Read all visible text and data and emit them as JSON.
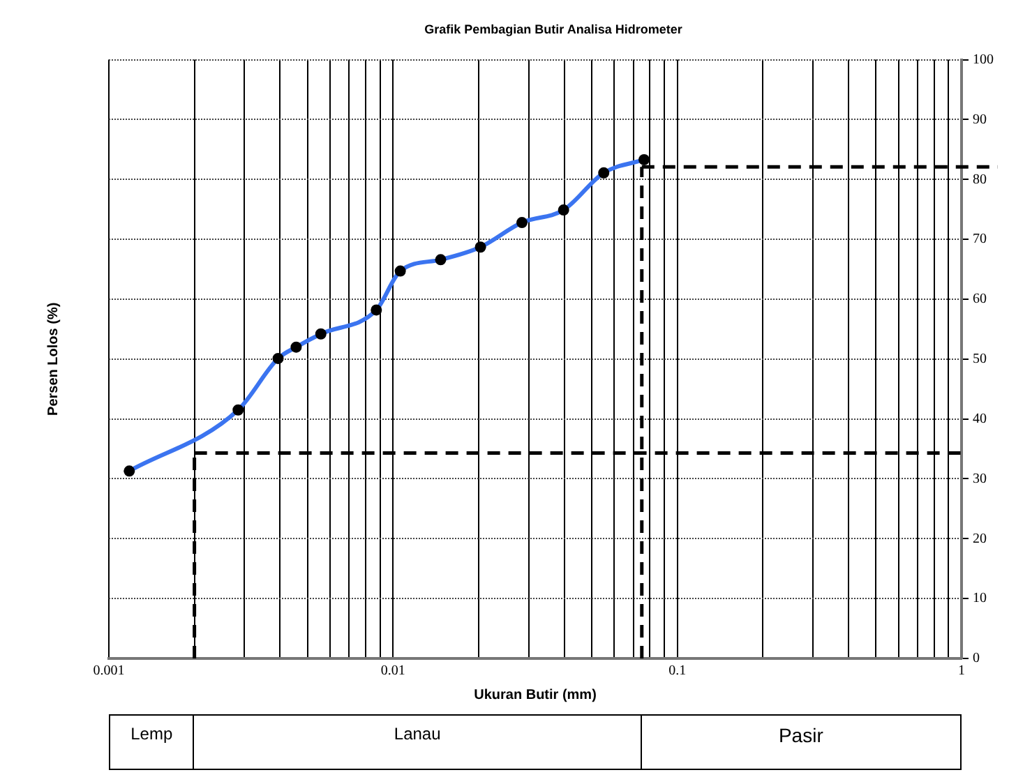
{
  "chart_data": {
    "type": "line",
    "title": "Grafik Pembagian Butir Analisa Hidrometer",
    "xlabel": "Ukuran Butir (mm)",
    "ylabel": "Persen Lolos (%)",
    "x": [
      0.00118,
      0.00285,
      0.00394,
      0.00456,
      0.00557,
      0.00873,
      0.0106,
      0.0147,
      0.0203,
      0.0284,
      0.0398,
      0.0551,
      0.0764
    ],
    "series": [
      {
        "color": "#3b74f0",
        "values": [
          31.3,
          41.5,
          50.1,
          52.0,
          54.2,
          58.2,
          64.7,
          66.6,
          68.7,
          72.8,
          74.9,
          81.1,
          83.3
        ]
      }
    ],
    "log": "x",
    "xlim": [
      0.001,
      1
    ],
    "ylim": [
      0,
      100
    ],
    "xticks": [
      0.001,
      {
        "value": 0.002,
        "label": null
      },
      {
        "value": 0.003,
        "label": null
      },
      {
        "value": 0.004,
        "label": null
      },
      {
        "value": 0.005,
        "label": null
      },
      {
        "value": 0.006,
        "label": null
      },
      {
        "value": 0.007,
        "label": null
      },
      {
        "value": 0.008,
        "label": null
      },
      {
        "value": 0.009,
        "label": null
      },
      0.01,
      {
        "value": 0.02,
        "label": null
      },
      {
        "value": 0.03,
        "label": null
      },
      {
        "value": 0.04,
        "label": null
      },
      {
        "value": 0.05,
        "label": null
      },
      {
        "value": 0.06,
        "label": null
      },
      {
        "value": 0.07,
        "label": null
      },
      {
        "value": 0.08,
        "label": null
      },
      {
        "value": 0.09,
        "label": null
      },
      0.1,
      {
        "value": 0.2,
        "label": null
      },
      {
        "value": 0.3,
        "label": null
      },
      {
        "value": 0.4,
        "label": null
      },
      {
        "value": 0.5,
        "label": null
      },
      {
        "value": 0.6,
        "label": null
      },
      {
        "value": 0.7,
        "label": null
      },
      {
        "value": 0.8,
        "label": null
      },
      {
        "value": 0.9,
        "label": null
      },
      1
    ],
    "yticks": [
      0,
      10,
      20,
      30,
      40,
      50,
      60,
      70,
      80,
      90,
      100
    ],
    "grid": true,
    "legend": false,
    "marker": "circle",
    "line_style": "solid",
    "ref_lines": [
      {
        "axis": "x",
        "value": 0.002,
        "line_style": "dashed",
        "color": "#000000"
      },
      {
        "axis": "y",
        "value": 34.3,
        "line_style": "dashed",
        "color": "#000000"
      },
      {
        "axis": "x",
        "value": 0.075,
        "line_style": "dashed",
        "color": "#000000"
      },
      {
        "axis": "y",
        "value": 82.1,
        "line_style": "dashed",
        "color": "#000000"
      }
    ],
    "annotations": [
      "Lemp",
      "Lanau",
      "Pasir"
    ]
  }
}
